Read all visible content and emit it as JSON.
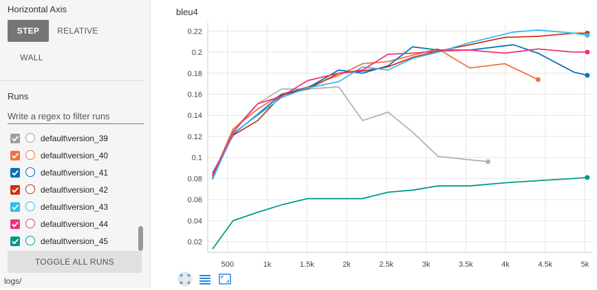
{
  "sidebar": {
    "horizontal_axis_title": "Horizontal Axis",
    "axis_options": [
      "STEP",
      "RELATIVE",
      "WALL"
    ],
    "axis_selected": "STEP",
    "runs_title": "Runs",
    "filter_placeholder": "Write a regex to filter runs",
    "runs": [
      {
        "label": "default\\version_39",
        "color": "#9e9e9e",
        "checked": true
      },
      {
        "label": "default\\version_40",
        "color": "#f4703f",
        "checked": true
      },
      {
        "label": "default\\version_41",
        "color": "#0072b2",
        "checked": true
      },
      {
        "label": "default\\version_42",
        "color": "#cc3311",
        "checked": true
      },
      {
        "label": "default\\version_43",
        "color": "#33bbee",
        "checked": true
      },
      {
        "label": "default\\version_44",
        "color": "#ee3377",
        "checked": true
      },
      {
        "label": "default\\version_45",
        "color": "#009988",
        "checked": true
      }
    ],
    "toggle_all_label": "TOGGLE ALL RUNS",
    "log_dir": "logs/"
  },
  "toolbar_icons": [
    "fit-domain-icon",
    "data-table-icon",
    "expand-icon"
  ],
  "chart_data": {
    "type": "line",
    "title": "bleu4",
    "xlim": [
      250,
      5100
    ],
    "ylim": [
      0.01,
      0.228
    ],
    "x_ticks": [
      500,
      1000,
      1500,
      2000,
      2500,
      3000,
      3500,
      4000,
      4500,
      5000
    ],
    "x_tick_labels": [
      "500",
      "1k",
      "1.5k",
      "2k",
      "2.5k",
      "3k",
      "3.5k",
      "4k",
      "4.5k",
      "5k"
    ],
    "y_ticks": [
      0.02,
      0.04,
      0.06,
      0.08,
      0.1,
      0.12,
      0.14,
      0.16,
      0.18,
      0.2,
      0.22
    ],
    "y_tick_labels": [
      "0.02",
      "0.04",
      "0.06",
      "0.08",
      "0.1",
      "0.12",
      "0.14",
      "0.16",
      "0.18",
      "0.2",
      "0.22"
    ],
    "grid": true,
    "series": [
      {
        "name": "default\\version_39",
        "color": "#b3b3b3",
        "x": [
          310,
          570,
          880,
          1180,
          1510,
          1900,
          2200,
          2520,
          2830,
          3150,
          3780
        ],
        "y": [
          0.08,
          0.126,
          0.151,
          0.165,
          0.165,
          0.167,
          0.135,
          0.143,
          0.124,
          0.101,
          0.096
        ]
      },
      {
        "name": "default\\version_40",
        "color": "#f4703f",
        "x": [
          310,
          570,
          880,
          1180,
          1510,
          1900,
          2200,
          2520,
          2830,
          3150,
          3550,
          3990,
          4410
        ],
        "y": [
          0.082,
          0.127,
          0.146,
          0.16,
          0.167,
          0.178,
          0.189,
          0.191,
          0.197,
          0.203,
          0.185,
          0.189,
          0.174
        ]
      },
      {
        "name": "default\\version_41",
        "color": "#0077bb",
        "x": [
          310,
          570,
          880,
          1180,
          1510,
          1900,
          2200,
          2520,
          2830,
          3150,
          3550,
          4100,
          4410,
          4860,
          5030
        ],
        "y": [
          0.08,
          0.122,
          0.141,
          0.16,
          0.166,
          0.183,
          0.18,
          0.187,
          0.205,
          0.202,
          0.202,
          0.207,
          0.199,
          0.181,
          0.178
        ]
      },
      {
        "name": "default\\version_42",
        "color": "#cc3311",
        "x": [
          310,
          570,
          880,
          1180,
          1510,
          1900,
          2200,
          2520,
          2830,
          3150,
          3550,
          3990,
          4410,
          4860,
          5030
        ],
        "y": [
          0.085,
          0.121,
          0.135,
          0.159,
          0.165,
          0.18,
          0.182,
          0.186,
          0.195,
          0.201,
          0.207,
          0.214,
          0.215,
          0.218,
          0.218
        ]
      },
      {
        "name": "default\\version_43",
        "color": "#33bbee",
        "x": [
          310,
          570,
          880,
          1180,
          1510,
          1900,
          2200,
          2520,
          2830,
          3150,
          3550,
          4100,
          4410,
          4860,
          5030
        ],
        "y": [
          0.079,
          0.123,
          0.14,
          0.157,
          0.166,
          0.172,
          0.186,
          0.183,
          0.194,
          0.2,
          0.209,
          0.219,
          0.221,
          0.218,
          0.216
        ]
      },
      {
        "name": "default\\version_44",
        "color": "#ee3377",
        "x": [
          310,
          570,
          880,
          1180,
          1510,
          1900,
          2200,
          2520,
          2830,
          3150,
          3550,
          3990,
          4410,
          4860,
          5030
        ],
        "y": [
          0.083,
          0.124,
          0.151,
          0.158,
          0.173,
          0.18,
          0.183,
          0.198,
          0.199,
          0.201,
          0.202,
          0.199,
          0.203,
          0.2,
          0.2
        ]
      },
      {
        "name": "default\\version_45",
        "color": "#009988",
        "x": [
          310,
          570,
          880,
          1180,
          1510,
          1900,
          2200,
          2520,
          2830,
          3150,
          3550,
          3990,
          4410,
          4860,
          5030
        ],
        "y": [
          0.013,
          0.04,
          0.048,
          0.055,
          0.061,
          0.061,
          0.061,
          0.067,
          0.069,
          0.073,
          0.073,
          0.076,
          0.078,
          0.08,
          0.081
        ]
      }
    ]
  }
}
